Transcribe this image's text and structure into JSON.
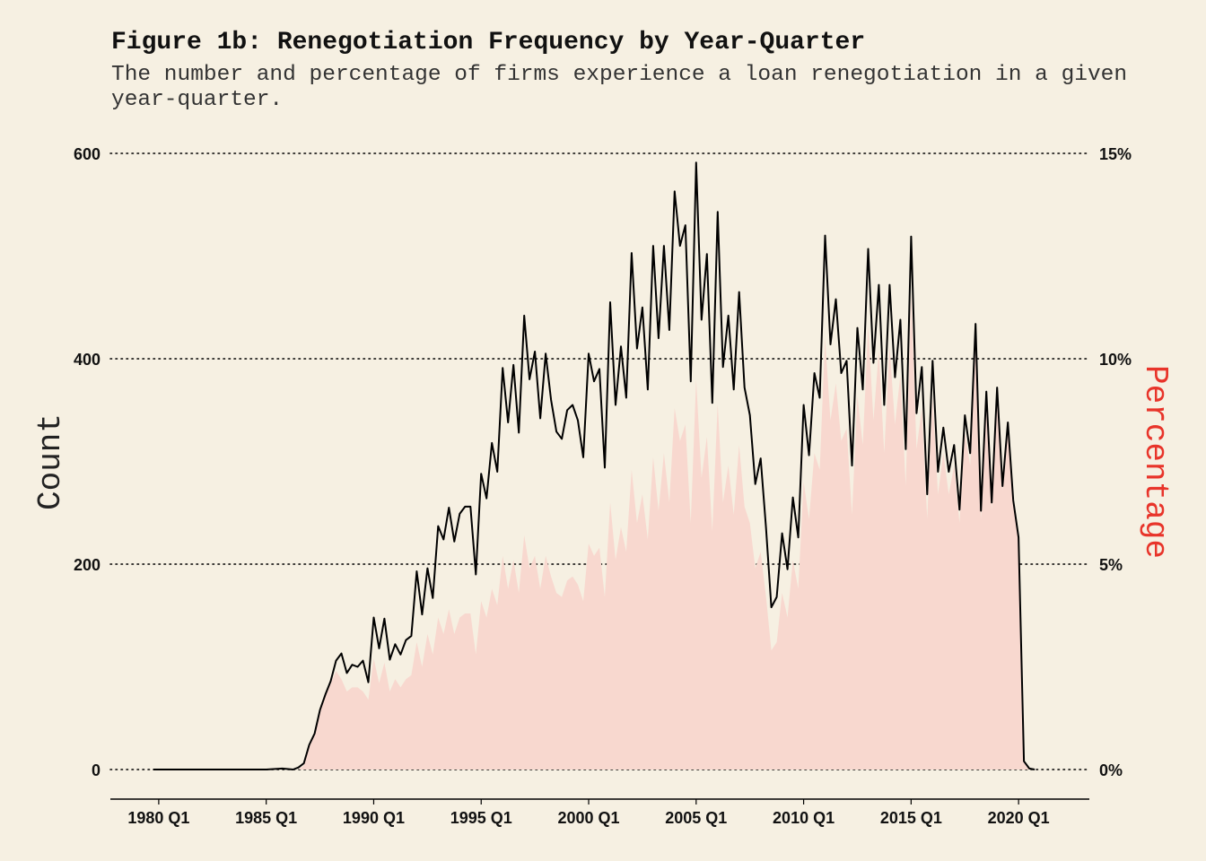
{
  "title": "Figure 1b: Renegotiation Frequency by Year-Quarter",
  "subtitle": "The number and percentage of firms experience a loan renegotiation in a given year-quarter.",
  "colors": {
    "background": "#f6f0e2",
    "count_line": "#000000",
    "percentage_area": "#f8d8cf",
    "percentage_axis_title": "#e8342a"
  },
  "chart_data": {
    "type": "line",
    "ylabel": "Count",
    "y2label": "Percentage",
    "ylim": [
      0,
      600
    ],
    "y2lim": [
      0,
      15
    ],
    "yticks": [
      {
        "value": 0,
        "label": "0"
      },
      {
        "value": 200,
        "label": "200"
      },
      {
        "value": 400,
        "label": "400"
      },
      {
        "value": 600,
        "label": "600"
      }
    ],
    "y2ticks": [
      {
        "value": 0,
        "label": "0%"
      },
      {
        "value": 5,
        "label": "5%"
      },
      {
        "value": 10,
        "label": "10%"
      },
      {
        "value": 15,
        "label": "15%"
      }
    ],
    "xticks": [
      {
        "value": 1980.0,
        "label": "1980 Q1"
      },
      {
        "value": 1985.0,
        "label": "1985 Q1"
      },
      {
        "value": 1990.0,
        "label": "1990 Q1"
      },
      {
        "value": 1995.0,
        "label": "1995 Q1"
      },
      {
        "value": 2000.0,
        "label": "2000 Q1"
      },
      {
        "value": 2005.0,
        "label": "2005 Q1"
      },
      {
        "value": 2010.0,
        "label": "2010 Q1"
      },
      {
        "value": 2015.0,
        "label": "2015 Q1"
      },
      {
        "value": 2020.0,
        "label": "2020 Q1"
      }
    ],
    "xlim": [
      1977.75,
      2023.25
    ],
    "grid": "horizontal dotted",
    "series": [
      {
        "name": "Count",
        "axis": "left",
        "style": "line",
        "points": [
          [
            1979.75,
            0
          ],
          [
            1985.0,
            0
          ],
          [
            1985.75,
            1
          ],
          [
            1986.25,
            0
          ],
          [
            1986.5,
            2
          ],
          [
            1986.75,
            6
          ],
          [
            1987.0,
            24
          ],
          [
            1987.25,
            35
          ],
          [
            1987.5,
            58
          ],
          [
            1987.75,
            73
          ],
          [
            1988.0,
            86
          ],
          [
            1988.25,
            106
          ],
          [
            1988.5,
            113
          ],
          [
            1988.75,
            94
          ],
          [
            1989.0,
            102
          ],
          [
            1989.25,
            100
          ],
          [
            1989.5,
            106
          ],
          [
            1989.75,
            85
          ],
          [
            1990.0,
            148
          ],
          [
            1990.25,
            118
          ],
          [
            1990.5,
            147
          ],
          [
            1990.75,
            107
          ],
          [
            1991.0,
            122
          ],
          [
            1991.25,
            112
          ],
          [
            1991.5,
            126
          ],
          [
            1991.75,
            130
          ],
          [
            1992.0,
            193
          ],
          [
            1992.25,
            151
          ],
          [
            1992.5,
            196
          ],
          [
            1992.75,
            167
          ],
          [
            1993.0,
            237
          ],
          [
            1993.25,
            224
          ],
          [
            1993.5,
            255
          ],
          [
            1993.75,
            222
          ],
          [
            1994.0,
            249
          ],
          [
            1994.25,
            256
          ],
          [
            1994.5,
            256
          ],
          [
            1994.75,
            190
          ],
          [
            1995.0,
            288
          ],
          [
            1995.25,
            264
          ],
          [
            1995.5,
            318
          ],
          [
            1995.75,
            290
          ],
          [
            1996.0,
            391
          ],
          [
            1996.25,
            338
          ],
          [
            1996.5,
            394
          ],
          [
            1996.75,
            328
          ],
          [
            1997.0,
            442
          ],
          [
            1997.25,
            380
          ],
          [
            1997.5,
            407
          ],
          [
            1997.75,
            342
          ],
          [
            1998.0,
            405
          ],
          [
            1998.25,
            360
          ],
          [
            1998.5,
            329
          ],
          [
            1998.75,
            322
          ],
          [
            1999.0,
            350
          ],
          [
            1999.25,
            355
          ],
          [
            1999.5,
            340
          ],
          [
            1999.75,
            304
          ],
          [
            2000.0,
            405
          ],
          [
            2000.25,
            378
          ],
          [
            2000.5,
            390
          ],
          [
            2000.75,
            294
          ],
          [
            2001.0,
            455
          ],
          [
            2001.25,
            355
          ],
          [
            2001.5,
            412
          ],
          [
            2001.75,
            362
          ],
          [
            2002.0,
            503
          ],
          [
            2002.25,
            410
          ],
          [
            2002.5,
            450
          ],
          [
            2002.75,
            370
          ],
          [
            2003.0,
            510
          ],
          [
            2003.25,
            420
          ],
          [
            2003.5,
            510
          ],
          [
            2003.75,
            428
          ],
          [
            2004.0,
            563
          ],
          [
            2004.25,
            510
          ],
          [
            2004.5,
            530
          ],
          [
            2004.75,
            378
          ],
          [
            2005.0,
            591
          ],
          [
            2005.25,
            438
          ],
          [
            2005.5,
            502
          ],
          [
            2005.75,
            357
          ],
          [
            2006.0,
            543
          ],
          [
            2006.25,
            392
          ],
          [
            2006.5,
            442
          ],
          [
            2006.75,
            370
          ],
          [
            2007.0,
            465
          ],
          [
            2007.25,
            372
          ],
          [
            2007.5,
            345
          ],
          [
            2007.75,
            278
          ],
          [
            2008.0,
            303
          ],
          [
            2008.25,
            235
          ],
          [
            2008.5,
            158
          ],
          [
            2008.75,
            168
          ],
          [
            2009.0,
            230
          ],
          [
            2009.25,
            195
          ],
          [
            2009.5,
            265
          ],
          [
            2009.75,
            226
          ],
          [
            2010.0,
            355
          ],
          [
            2010.25,
            306
          ],
          [
            2010.5,
            386
          ],
          [
            2010.75,
            362
          ],
          [
            2011.0,
            520
          ],
          [
            2011.25,
            414
          ],
          [
            2011.5,
            458
          ],
          [
            2011.75,
            386
          ],
          [
            2012.0,
            398
          ],
          [
            2012.25,
            296
          ],
          [
            2012.5,
            430
          ],
          [
            2012.75,
            370
          ],
          [
            2013.0,
            507
          ],
          [
            2013.25,
            396
          ],
          [
            2013.5,
            472
          ],
          [
            2013.75,
            355
          ],
          [
            2014.0,
            472
          ],
          [
            2014.25,
            382
          ],
          [
            2014.5,
            438
          ],
          [
            2014.75,
            312
          ],
          [
            2015.0,
            519
          ],
          [
            2015.25,
            347
          ],
          [
            2015.5,
            392
          ],
          [
            2015.75,
            268
          ],
          [
            2016.0,
            398
          ],
          [
            2016.25,
            290
          ],
          [
            2016.5,
            333
          ],
          [
            2016.75,
            290
          ],
          [
            2017.0,
            316
          ],
          [
            2017.25,
            253
          ],
          [
            2017.5,
            345
          ],
          [
            2017.75,
            308
          ],
          [
            2018.0,
            434
          ],
          [
            2018.25,
            252
          ],
          [
            2018.5,
            368
          ],
          [
            2018.75,
            260
          ],
          [
            2019.0,
            372
          ],
          [
            2019.25,
            276
          ],
          [
            2019.5,
            338
          ],
          [
            2019.75,
            262
          ],
          [
            2020.0,
            226
          ],
          [
            2020.25,
            8
          ],
          [
            2020.5,
            1
          ],
          [
            2020.75,
            0
          ]
        ]
      },
      {
        "name": "Percentage",
        "axis": "right",
        "style": "area",
        "points": [
          [
            1979.75,
            0
          ],
          [
            1986.5,
            0.0
          ],
          [
            1986.75,
            0.1
          ],
          [
            1987.0,
            0.6
          ],
          [
            1987.25,
            0.9
          ],
          [
            1987.5,
            1.5
          ],
          [
            1987.75,
            1.8
          ],
          [
            1988.0,
            2.1
          ],
          [
            1988.25,
            2.4
          ],
          [
            1988.5,
            2.2
          ],
          [
            1988.75,
            1.9
          ],
          [
            1989.0,
            2.0
          ],
          [
            1989.25,
            2.0
          ],
          [
            1989.5,
            1.9
          ],
          [
            1989.75,
            1.7
          ],
          [
            1990.0,
            2.7
          ],
          [
            1990.25,
            2.1
          ],
          [
            1990.5,
            2.6
          ],
          [
            1990.75,
            1.9
          ],
          [
            1991.0,
            2.2
          ],
          [
            1991.25,
            2.0
          ],
          [
            1991.5,
            2.2
          ],
          [
            1991.75,
            2.3
          ],
          [
            1992.0,
            3.1
          ],
          [
            1992.25,
            2.5
          ],
          [
            1992.5,
            3.3
          ],
          [
            1992.75,
            2.8
          ],
          [
            1993.0,
            3.7
          ],
          [
            1993.25,
            3.3
          ],
          [
            1993.5,
            3.9
          ],
          [
            1993.75,
            3.3
          ],
          [
            1994.0,
            3.7
          ],
          [
            1994.25,
            3.8
          ],
          [
            1994.5,
            3.8
          ],
          [
            1994.75,
            2.8
          ],
          [
            1995.0,
            4.1
          ],
          [
            1995.25,
            3.7
          ],
          [
            1995.5,
            4.4
          ],
          [
            1995.75,
            4.0
          ],
          [
            1996.0,
            5.2
          ],
          [
            1996.25,
            4.4
          ],
          [
            1996.5,
            5.1
          ],
          [
            1996.75,
            4.3
          ],
          [
            1997.0,
            5.7
          ],
          [
            1997.25,
            4.9
          ],
          [
            1997.5,
            5.2
          ],
          [
            1997.75,
            4.4
          ],
          [
            1998.0,
            5.2
          ],
          [
            1998.25,
            4.7
          ],
          [
            1998.5,
            4.3
          ],
          [
            1998.75,
            4.2
          ],
          [
            1999.0,
            4.6
          ],
          [
            1999.25,
            4.7
          ],
          [
            1999.5,
            4.5
          ],
          [
            1999.75,
            4.1
          ],
          [
            2000.0,
            5.5
          ],
          [
            2000.25,
            5.2
          ],
          [
            2000.5,
            5.4
          ],
          [
            2000.75,
            4.2
          ],
          [
            2001.0,
            6.5
          ],
          [
            2001.25,
            5.1
          ],
          [
            2001.5,
            5.9
          ],
          [
            2001.75,
            5.3
          ],
          [
            2002.0,
            7.3
          ],
          [
            2002.25,
            6.0
          ],
          [
            2002.5,
            6.7
          ],
          [
            2002.75,
            5.6
          ],
          [
            2003.0,
            7.6
          ],
          [
            2003.25,
            6.3
          ],
          [
            2003.5,
            7.7
          ],
          [
            2003.75,
            6.5
          ],
          [
            2004.0,
            8.8
          ],
          [
            2004.25,
            8.0
          ],
          [
            2004.5,
            8.4
          ],
          [
            2004.75,
            6.0
          ],
          [
            2005.0,
            9.5
          ],
          [
            2005.25,
            7.1
          ],
          [
            2005.5,
            8.1
          ],
          [
            2005.75,
            5.8
          ],
          [
            2006.0,
            8.9
          ],
          [
            2006.25,
            6.5
          ],
          [
            2006.5,
            7.4
          ],
          [
            2006.75,
            6.2
          ],
          [
            2007.0,
            7.9
          ],
          [
            2007.25,
            6.4
          ],
          [
            2007.5,
            6.0
          ],
          [
            2007.75,
            4.9
          ],
          [
            2008.0,
            5.3
          ],
          [
            2008.25,
            4.2
          ],
          [
            2008.5,
            2.9
          ],
          [
            2008.75,
            3.1
          ],
          [
            2009.0,
            4.3
          ],
          [
            2009.25,
            3.7
          ],
          [
            2009.5,
            5.1
          ],
          [
            2009.75,
            4.4
          ],
          [
            2010.0,
            7.0
          ],
          [
            2010.25,
            6.1
          ],
          [
            2010.5,
            7.7
          ],
          [
            2010.75,
            7.3
          ],
          [
            2011.0,
            10.5
          ],
          [
            2011.25,
            8.5
          ],
          [
            2011.5,
            9.4
          ],
          [
            2011.75,
            8.0
          ],
          [
            2012.0,
            8.3
          ],
          [
            2012.25,
            6.2
          ],
          [
            2012.5,
            9.1
          ],
          [
            2012.75,
            7.9
          ],
          [
            2013.0,
            10.8
          ],
          [
            2013.25,
            8.5
          ],
          [
            2013.5,
            10.2
          ],
          [
            2013.75,
            7.7
          ],
          [
            2014.0,
            10.3
          ],
          [
            2014.25,
            8.4
          ],
          [
            2014.5,
            9.6
          ],
          [
            2014.75,
            6.9
          ],
          [
            2015.0,
            11.6
          ],
          [
            2015.25,
            7.8
          ],
          [
            2015.5,
            8.8
          ],
          [
            2015.75,
            6.1
          ],
          [
            2016.0,
            9.1
          ],
          [
            2016.25,
            6.7
          ],
          [
            2016.5,
            7.7
          ],
          [
            2016.75,
            6.7
          ],
          [
            2017.0,
            7.4
          ],
          [
            2017.25,
            6.0
          ],
          [
            2017.5,
            8.2
          ],
          [
            2017.75,
            7.4
          ],
          [
            2018.0,
            10.4
          ],
          [
            2018.25,
            6.1
          ],
          [
            2018.5,
            8.9
          ],
          [
            2018.75,
            6.3
          ],
          [
            2019.0,
            9.1
          ],
          [
            2019.25,
            6.8
          ],
          [
            2019.5,
            8.4
          ],
          [
            2019.75,
            6.5
          ],
          [
            2020.0,
            5.7
          ],
          [
            2020.25,
            0.2
          ],
          [
            2020.5,
            0.0
          ],
          [
            2020.75,
            0
          ]
        ]
      }
    ]
  }
}
